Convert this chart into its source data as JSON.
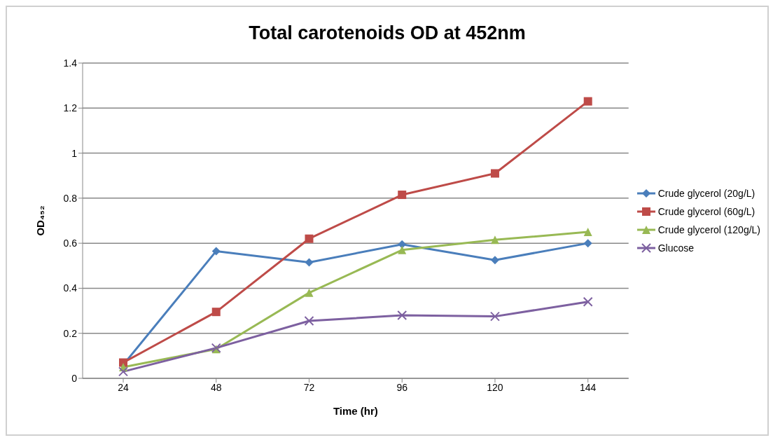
{
  "chart_data": {
    "type": "line",
    "title": "Total carotenoids OD at 452nm",
    "xlabel": "Time (hr)",
    "ylabel": "OD₄₅₂",
    "categories": [
      "24",
      "48",
      "72",
      "96",
      "120",
      "144"
    ],
    "series": [
      {
        "name": "Crude glycerol (20g/L)",
        "color": "#4a7ebb",
        "marker": "diamond",
        "values": [
          0.06,
          0.565,
          0.515,
          0.595,
          0.525,
          0.6
        ]
      },
      {
        "name": "Crude glycerol (60g/L)",
        "color": "#be4b48",
        "marker": "square",
        "values": [
          0.07,
          0.295,
          0.62,
          0.815,
          0.91,
          1.23
        ]
      },
      {
        "name": "Crude glycerol (120g/L)",
        "color": "#98b954",
        "marker": "triangle",
        "values": [
          0.05,
          0.13,
          0.38,
          0.57,
          0.615,
          0.65
        ]
      },
      {
        "name": "Glucose",
        "color": "#7d60a0",
        "marker": "cross",
        "values": [
          0.03,
          0.135,
          0.255,
          0.28,
          0.275,
          0.34
        ]
      }
    ],
    "ylim": [
      0,
      1.4
    ],
    "yticks": [
      0,
      0.2,
      0.4,
      0.6,
      0.8,
      1,
      1.2,
      1.4
    ],
    "grid": "y",
    "legend": "right"
  }
}
